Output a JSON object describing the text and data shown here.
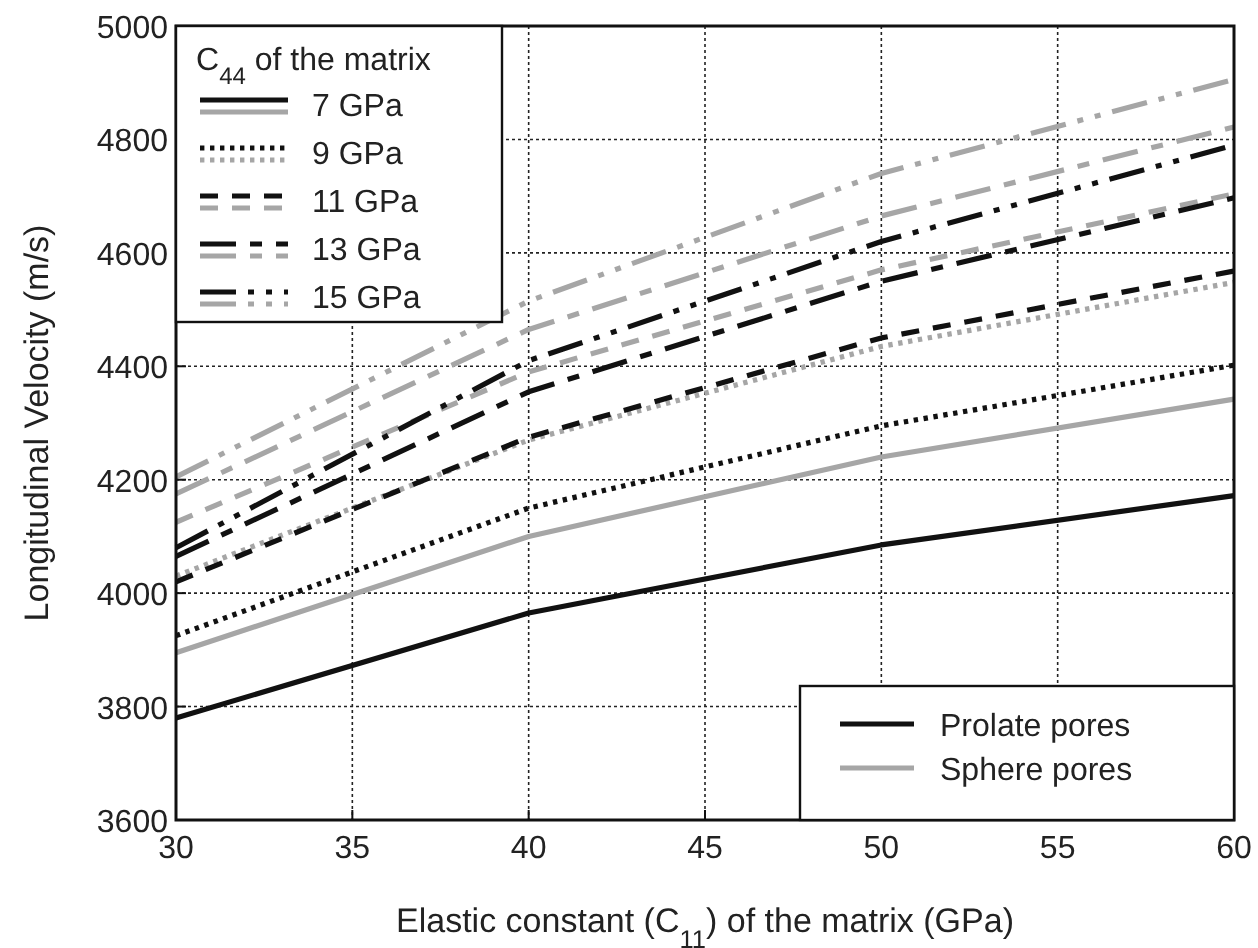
{
  "chart_data": {
    "type": "line",
    "xlabel": "Elastic constant (C$_{11}$) of the matrix (GPa)",
    "ylabel": "Longitudinal Velocity (m/s)",
    "legend_title": "C$_{44}$ of the matrix",
    "x": [
      30,
      40,
      50,
      60
    ],
    "xlim": [
      30,
      60
    ],
    "xticks": [
      30,
      35,
      40,
      45,
      50,
      55,
      60
    ],
    "ylim": [
      3600,
      5000
    ],
    "yticks": [
      3600,
      3800,
      4000,
      4200,
      4400,
      4600,
      4800,
      5000
    ],
    "grid": true,
    "legend": "top left",
    "marker": "none",
    "series": [
      {
        "name": "7 GPa",
        "color": "#111111",
        "line_style": "solid",
        "values": [
          3780,
          3965,
          4085,
          4172
        ]
      },
      {
        "color": "#a6a6a6",
        "line_style": "solid",
        "values": [
          3895,
          4100,
          4240,
          4342
        ]
      },
      {
        "name": "9 GPa",
        "color": "#111111",
        "line_style": "dotted",
        "values": [
          3925,
          4150,
          4295,
          4402
        ]
      },
      {
        "color": "#a6a6a6",
        "line_style": "dotted",
        "values": [
          4030,
          4270,
          4435,
          4548
        ]
      },
      {
        "name": "11 GPa",
        "color": "#111111",
        "line_style": "dashed",
        "values": [
          4020,
          4275,
          4450,
          4568
        ]
      },
      {
        "color": "#a6a6a6",
        "line_style": "dashed",
        "values": [
          4125,
          4390,
          4570,
          4704
        ]
      },
      {
        "name": "13 GPa",
        "color": "#111111",
        "line_style": "longdash",
        "values": [
          4065,
          4355,
          4550,
          4697
        ]
      },
      {
        "color": "#a6a6a6",
        "line_style": "longdash",
        "values": [
          4175,
          4465,
          4665,
          4822
        ]
      },
      {
        "name": "15 GPa",
        "color": "#111111",
        "line_style": "dashdot",
        "values": [
          4080,
          4410,
          4620,
          4790
        ]
      },
      {
        "color": "#a6a6a6",
        "line_style": "dashdot",
        "values": [
          4205,
          4515,
          4740,
          4906
        ]
      }
    ],
    "annotations": [
      "Prolate pores",
      "Sphere pores"
    ]
  }
}
